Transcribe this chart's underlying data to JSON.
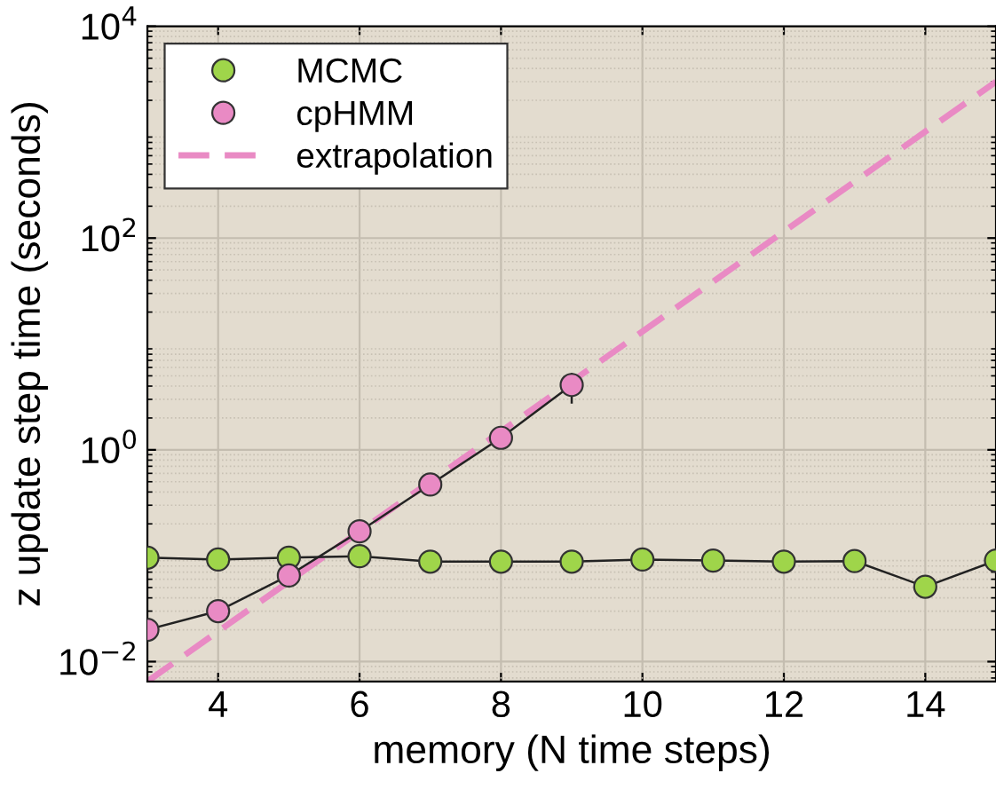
{
  "chart_data": {
    "type": "line",
    "xlabel": "memory (N time steps)",
    "ylabel": "z update step time (seconds)",
    "log": "y",
    "xlim": [
      3,
      15
    ],
    "xticks": [
      4,
      6,
      8,
      10,
      12,
      14
    ],
    "ylim": [
      0.0065,
      10000
    ],
    "yticks": [
      {
        "value": 0.01,
        "label": "10$^{−2}$"
      },
      {
        "value": 1,
        "label": "10$^{0}$"
      },
      {
        "value": 100,
        "label": "10$^{2}$"
      },
      {
        "value": 10000,
        "label": "10$^{4}$"
      }
    ],
    "grid": true,
    "legend": "top left",
    "series": [
      {
        "name": "MCMC",
        "color": "#9fd54a",
        "marker": "circle",
        "line_style": "solid",
        "x": [
          3,
          4,
          5,
          6,
          7,
          8,
          9,
          10,
          11,
          12,
          13,
          14,
          15
        ],
        "values": [
          0.096,
          0.092,
          0.096,
          0.099,
          0.088,
          0.088,
          0.088,
          0.092,
          0.09,
          0.088,
          0.089,
          0.051,
          0.09
        ]
      },
      {
        "name": "cpHMM",
        "color": "#e98ac4",
        "marker": "circle",
        "line_style": "solid",
        "x": [
          3,
          4,
          5,
          6,
          7,
          8,
          9
        ],
        "values": [
          0.02,
          0.03,
          0.065,
          0.17,
          0.47,
          1.3,
          4.1
        ],
        "errors": [
          null,
          null,
          null,
          null,
          null,
          null,
          [
            2.8,
            5.2
          ]
        ]
      },
      {
        "name": "extrapolation",
        "color": "#e98ac4",
        "marker": "none",
        "line_style": "dashed",
        "x": [
          3,
          15
        ],
        "values": [
          0.0065,
          3000
        ]
      }
    ]
  }
}
